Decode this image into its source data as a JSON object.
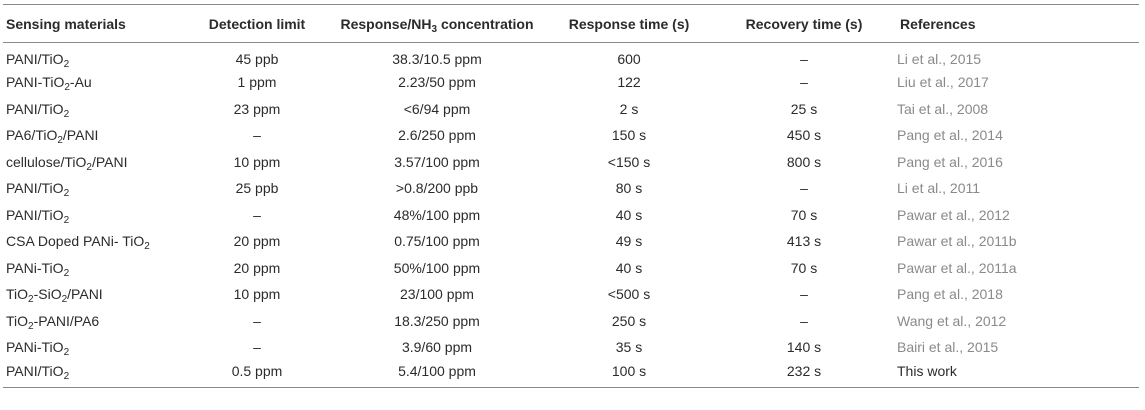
{
  "headers": [
    {
      "parts": [
        {
          "t": "Sensing materials"
        }
      ]
    },
    {
      "parts": [
        {
          "t": "Detection limit"
        }
      ]
    },
    {
      "parts": [
        {
          "t": "Response/NH"
        },
        {
          "t": "3",
          "sub": true
        },
        {
          "t": " concentration"
        }
      ]
    },
    {
      "parts": [
        {
          "t": "Response time (s)"
        }
      ]
    },
    {
      "parts": [
        {
          "t": "Recovery time (s)"
        }
      ]
    },
    {
      "parts": [
        {
          "t": "References"
        }
      ]
    }
  ],
  "rows": [
    {
      "material": [
        {
          "t": "PANI/TiO"
        },
        {
          "t": "2",
          "sub": true
        }
      ],
      "detection": "45 ppb",
      "response": "38.3/10.5 ppm",
      "resp_time": "600",
      "rec_time": "–",
      "reference": "Li et al., 2015"
    },
    {
      "material": [
        {
          "t": "PANI-TiO"
        },
        {
          "t": "2",
          "sub": true
        },
        {
          "t": "-Au"
        }
      ],
      "detection": "1 ppm",
      "response": "2.23/50 ppm",
      "resp_time": "122",
      "rec_time": "–",
      "reference": "Liu et al., 2017"
    },
    {
      "material": [
        {
          "t": "PANI/TiO"
        },
        {
          "t": "2",
          "sub": true
        }
      ],
      "detection": "23 ppm",
      "response": "<6/94 ppm",
      "resp_time": "2 s",
      "rec_time": "25 s",
      "reference": "Tai et al., 2008"
    },
    {
      "material": [
        {
          "t": "PA6/TiO"
        },
        {
          "t": "2",
          "sub": true
        },
        {
          "t": "/PANI"
        }
      ],
      "detection": "–",
      "response": "2.6/250 ppm",
      "resp_time": "150 s",
      "rec_time": "450 s",
      "reference": "Pang et al., 2014"
    },
    {
      "material": [
        {
          "t": "cellulose/TiO"
        },
        {
          "t": "2",
          "sub": true
        },
        {
          "t": "/PANI"
        }
      ],
      "detection": "10 ppm",
      "response": "3.57/100 ppm",
      "resp_time": "<150 s",
      "rec_time": "800 s",
      "reference": "Pang et al., 2016"
    },
    {
      "material": [
        {
          "t": "PANI/TiO"
        },
        {
          "t": "2",
          "sub": true
        }
      ],
      "detection": "25 ppb",
      "response": ">0.8/200 ppb",
      "resp_time": "80 s",
      "rec_time": "–",
      "reference": "Li et al., 2011"
    },
    {
      "material": [
        {
          "t": "PANI/TiO"
        },
        {
          "t": "2",
          "sub": true
        }
      ],
      "detection": "–",
      "response": "48%/100 ppm",
      "resp_time": "40 s",
      "rec_time": "70 s",
      "reference": "Pawar et al., 2012"
    },
    {
      "material": [
        {
          "t": "CSA Doped PANi- TiO"
        },
        {
          "t": "2",
          "sub": true
        }
      ],
      "detection": "20 ppm",
      "response": "0.75/100 ppm",
      "resp_time": "49 s",
      "rec_time": "413 s",
      "reference": "Pawar et al., 2011b"
    },
    {
      "material": [
        {
          "t": "PANi-TiO"
        },
        {
          "t": "2",
          "sub": true
        }
      ],
      "detection": "20 ppm",
      "response": "50%/100 ppm",
      "resp_time": "40 s",
      "rec_time": "70 s",
      "reference": "Pawar et al., 2011a"
    },
    {
      "material": [
        {
          "t": "TiO"
        },
        {
          "t": "2",
          "sub": true
        },
        {
          "t": "-SiO"
        },
        {
          "t": "2",
          "sub": true
        },
        {
          "t": "/PANI"
        }
      ],
      "detection": "10 ppm",
      "response": "23/100 ppm",
      "resp_time": "<500 s",
      "rec_time": "–",
      "reference": "Pang et al., 2018"
    },
    {
      "material": [
        {
          "t": "TiO"
        },
        {
          "t": "2",
          "sub": true
        },
        {
          "t": "-PANI/PA6"
        }
      ],
      "detection": "–",
      "response": "18.3/250 ppm",
      "resp_time": "250 s",
      "rec_time": "–",
      "reference": "Wang et al., 2012"
    },
    {
      "material": [
        {
          "t": "PANi-TiO"
        },
        {
          "t": "2",
          "sub": true
        }
      ],
      "detection": "–",
      "response": "3.9/60 ppm",
      "resp_time": "35 s",
      "rec_time": "140 s",
      "reference": "Bairi et al., 2015"
    },
    {
      "material": [
        {
          "t": "PANI/TiO"
        },
        {
          "t": "2",
          "sub": true
        }
      ],
      "detection": "0.5 ppm",
      "response": "5.4/100 ppm",
      "resp_time": "100 s",
      "rec_time": "232 s",
      "reference": "This work"
    }
  ],
  "colors": {
    "text": "#2b2b2b",
    "reference_link": "#8a8a8a",
    "rule": "#8a8a8a"
  }
}
